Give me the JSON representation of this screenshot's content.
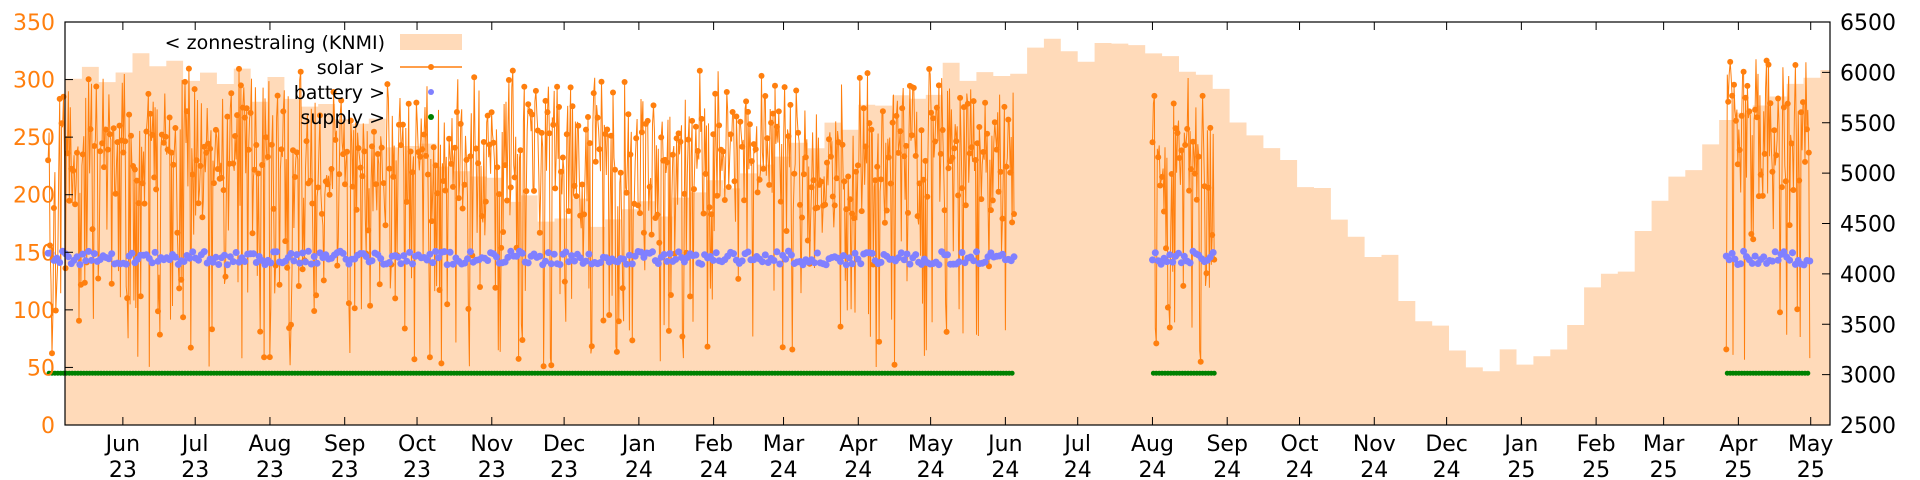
{
  "chart_data": {
    "type": "line",
    "title": "",
    "xlabel": "",
    "x_tick_labels": [
      [
        "Jun",
        "23"
      ],
      [
        "Jul",
        "23"
      ],
      [
        "Aug",
        "23"
      ],
      [
        "Sep",
        "23"
      ],
      [
        "Oct",
        "23"
      ],
      [
        "Nov",
        "23"
      ],
      [
        "Dec",
        "23"
      ],
      [
        "Jan",
        "24"
      ],
      [
        "Feb",
        "24"
      ],
      [
        "Mar",
        "24"
      ],
      [
        "Apr",
        "24"
      ],
      [
        "May",
        "24"
      ],
      [
        "Jun",
        "24"
      ],
      [
        "Jul",
        "24"
      ],
      [
        "Aug",
        "24"
      ],
      [
        "Sep",
        "24"
      ],
      [
        "Oct",
        "24"
      ],
      [
        "Nov",
        "24"
      ],
      [
        "Dec",
        "24"
      ],
      [
        "Jan",
        "25"
      ],
      [
        "Feb",
        "25"
      ],
      [
        "Mar",
        "25"
      ],
      [
        "Apr",
        "25"
      ],
      [
        "May",
        "25"
      ]
    ],
    "x_range": [
      "2023-05",
      "2025-05"
    ],
    "y_left": {
      "ylim": [
        0,
        350
      ],
      "ticks": [
        0,
        50,
        100,
        150,
        200,
        250,
        300,
        350
      ],
      "color": "#ff7f0e"
    },
    "y_right": {
      "ylim": [
        2500,
        6500
      ],
      "ticks": [
        2500,
        3000,
        3500,
        4000,
        4500,
        5000,
        5500,
        6000,
        6500
      ],
      "color": "#000000"
    },
    "grid": false,
    "legend_position": "top-left",
    "series": [
      {
        "name": "< zonnestraling (KNMI)",
        "style": "filled-area",
        "axis": "right",
        "color": "#ffdab9",
        "monthly_approx": [
          {
            "month": "2023-05",
            "value": 5900
          },
          {
            "month": "2023-06",
            "value": 6200
          },
          {
            "month": "2023-07",
            "value": 5900
          },
          {
            "month": "2023-08",
            "value": 5800
          },
          {
            "month": "2023-09",
            "value": 5500
          },
          {
            "month": "2023-10",
            "value": 5000
          },
          {
            "month": "2023-11",
            "value": 4700
          },
          {
            "month": "2023-12",
            "value": 4600
          },
          {
            "month": "2024-01",
            "value": 4700
          },
          {
            "month": "2024-02",
            "value": 5000
          },
          {
            "month": "2024-03",
            "value": 5400
          },
          {
            "month": "2024-04",
            "value": 5800
          },
          {
            "month": "2024-05",
            "value": 6000
          },
          {
            "month": "2024-06",
            "value": 6200
          },
          {
            "month": "2024-07",
            "value": 6200
          },
          {
            "month": "2024-08",
            "value": 6000
          },
          {
            "month": "2024-09",
            "value": 5400
          },
          {
            "month": "2024-10",
            "value": 4700
          },
          {
            "month": "2024-11",
            "value": 3800
          },
          {
            "month": "2024-12",
            "value": 3000
          },
          {
            "month": "2025-01",
            "value": 3300
          },
          {
            "month": "2025-02",
            "value": 4200
          },
          {
            "month": "2025-03",
            "value": 5100
          },
          {
            "month": "2025-04",
            "value": 5900
          },
          {
            "month": "2025-05",
            "value": 6100
          }
        ]
      },
      {
        "name": "solar >",
        "style": "line-points",
        "axis": "left",
        "color": "#ff7f0e",
        "active_periods": [
          {
            "from": "2023-05",
            "to": "2024-06-05",
            "typical_low": 50,
            "typical_high": 310
          },
          {
            "from": "2024-08-01",
            "to": "2024-08-27",
            "typical_low": 50,
            "typical_high": 320
          },
          {
            "from": "2025-03-27",
            "to": "2025-05",
            "typical_low": 50,
            "typical_high": 330
          }
        ]
      },
      {
        "name": "battery >",
        "style": "points",
        "axis": "left",
        "color": "#8080ff",
        "typical_value": 145
      },
      {
        "name": "supply >",
        "style": "points",
        "axis": "left",
        "color": "#008000",
        "typical_value": 45
      }
    ]
  }
}
